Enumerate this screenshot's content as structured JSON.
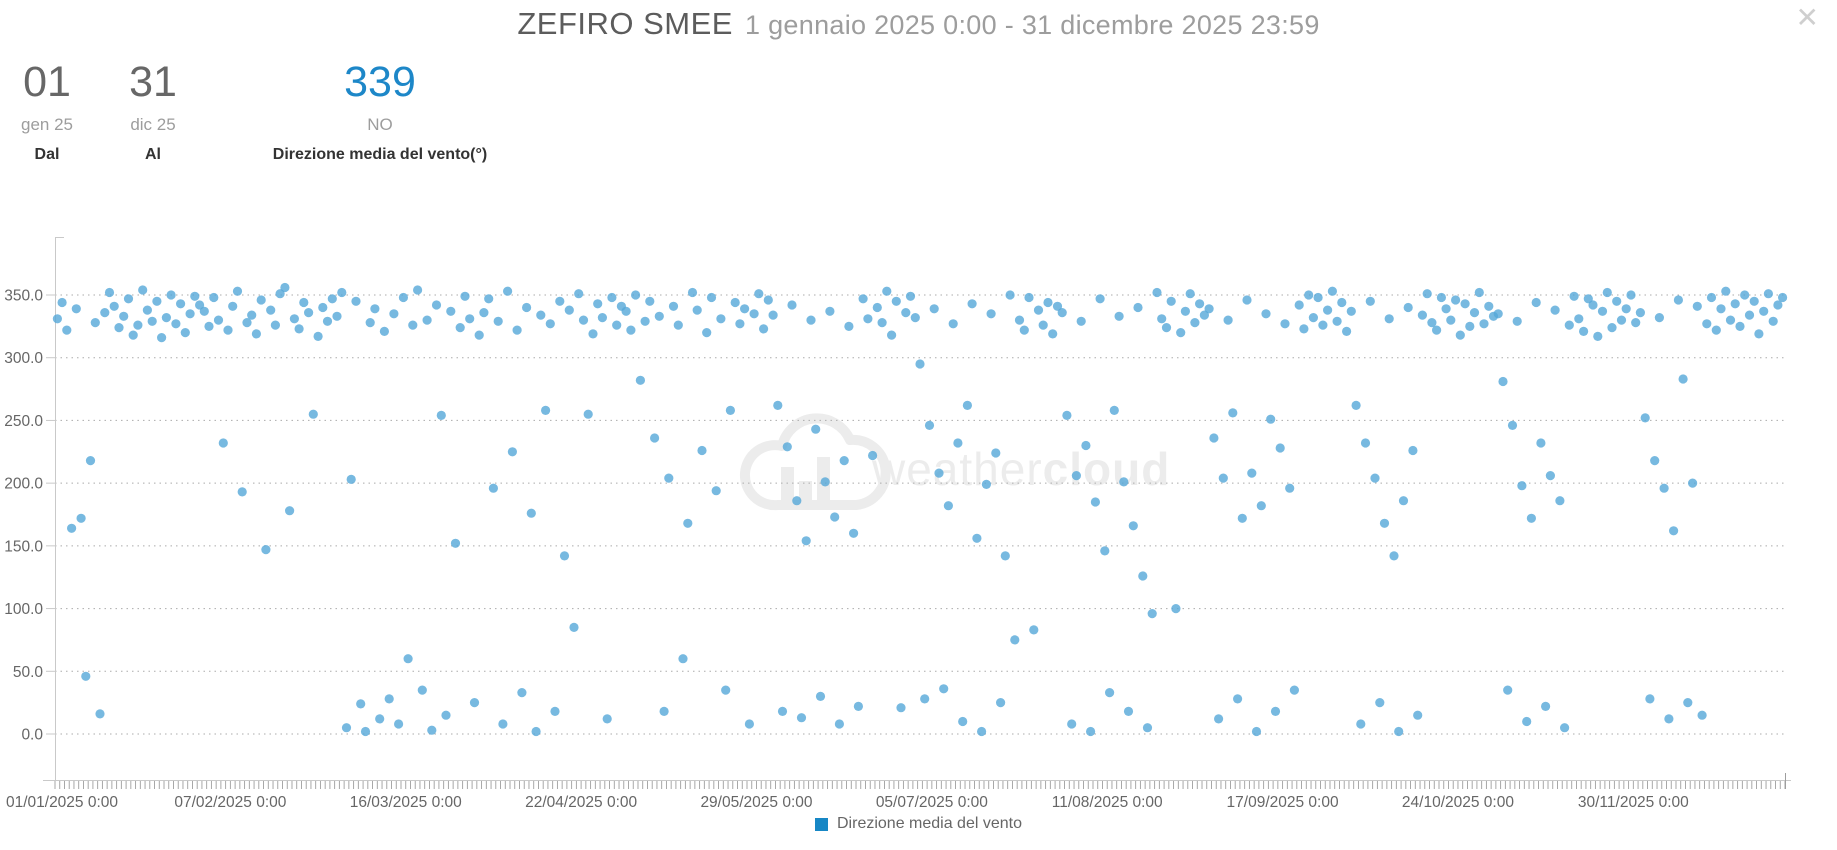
{
  "header": {
    "title": "ZEFIRO SMEE",
    "subtitle": "1 gennaio 2025 0:00 - 31 dicembre 2025 23:59"
  },
  "icons": {
    "close": "✕"
  },
  "stats": [
    {
      "value": "01",
      "unit": "gen 25",
      "label": "Dal"
    },
    {
      "value": "31",
      "unit": "dic 25",
      "label": "Al"
    },
    {
      "value": "339",
      "unit": "NO",
      "label": "Direzione media del vento(°)",
      "color": "#1d87c8"
    }
  ],
  "watermark": {
    "text_regular": "weather",
    "text_bold": "cloud"
  },
  "chart_data": {
    "type": "scatter",
    "title": "",
    "xlabel": "",
    "ylabel": "",
    "ylim": [
      0,
      396
    ],
    "yticks": [
      0,
      50,
      100,
      150,
      200,
      250,
      300,
      350
    ],
    "ytick_labels": [
      "0.0",
      "50.0",
      "100.0",
      "150.0",
      "200.0",
      "250.0",
      "300.0",
      "350.0"
    ],
    "xtick_labels": [
      "01/01/2025 0:00",
      "07/02/2025 0:00",
      "16/03/2025 0:00",
      "22/04/2025 0:00",
      "29/05/2025 0:00",
      "05/07/2025 0:00",
      "11/08/2025 0:00",
      "17/09/2025 0:00",
      "24/10/2025 0:00",
      "30/11/2025 0:00"
    ],
    "xtick_days": [
      0,
      37,
      74,
      111,
      148,
      185,
      222,
      259,
      296,
      333
    ],
    "x_total_days": 365,
    "grid": "dotted-horizontal",
    "legend_position": "bottom-center",
    "series": [
      {
        "name": "Direzione media del vento",
        "point_color": "#55a8d8",
        "legend_color": "#1787c5",
        "values_by_day": [
          331,
          344,
          322,
          164,
          339,
          172,
          46,
          218,
          328,
          16,
          336,
          352,
          341,
          324,
          333,
          347,
          318,
          326,
          354,
          338,
          329,
          345,
          316,
          332,
          350,
          327,
          343,
          320,
          335,
          349,
          342,
          337,
          325,
          348,
          330,
          232,
          322,
          341,
          353,
          193,
          328,
          334,
          319,
          346,
          147,
          338,
          326,
          351,
          356,
          178,
          331,
          323,
          344,
          336,
          255,
          317,
          340,
          329,
          347,
          333,
          352,
          5,
          203,
          345,
          24,
          2,
          328,
          339,
          12,
          321,
          28,
          335,
          8,
          348,
          60,
          326,
          354,
          35,
          330,
          3,
          342,
          254,
          15,
          337,
          152,
          324,
          349,
          331,
          25,
          318,
          336,
          347,
          196,
          329,
          8,
          353,
          225,
          322,
          33,
          340,
          176,
          2,
          334,
          258,
          327,
          18,
          345,
          142,
          338,
          85,
          351,
          330,
          255,
          319,
          343,
          332,
          12,
          348,
          326,
          341,
          337,
          322,
          350,
          282,
          329,
          345,
          236,
          333,
          18,
          204,
          341,
          326,
          60,
          168,
          352,
          338,
          226,
          320,
          348,
          194,
          331,
          35,
          258,
          344,
          327,
          339,
          8,
          335,
          351,
          323,
          346,
          334,
          262,
          18,
          229,
          342,
          186,
          13,
          154,
          330,
          243,
          30,
          201,
          337,
          173,
          8,
          218,
          325,
          160,
          22,
          347,
          331,
          222,
          340,
          328,
          353,
          318,
          345,
          21,
          336,
          349,
          332,
          295,
          28,
          246,
          339,
          208,
          36,
          182,
          327,
          232,
          10,
          262,
          343,
          156,
          2,
          199,
          335,
          224,
          25,
          142,
          350,
          75,
          330,
          322,
          348,
          83,
          338,
          326,
          344,
          319,
          341,
          336,
          254,
          8,
          206,
          329,
          230,
          2,
          185,
          347,
          146,
          33,
          258,
          333,
          201,
          18,
          166,
          340,
          126,
          5,
          96,
          352,
          331,
          324,
          345,
          100,
          320,
          337,
          351,
          328,
          343,
          334,
          339,
          236,
          12,
          204,
          330,
          256,
          28,
          172,
          346,
          208,
          2,
          182,
          335,
          251,
          18,
          228,
          327,
          196,
          35,
          342,
          323,
          350,
          332,
          348,
          326,
          338,
          353,
          329,
          344,
          321,
          337,
          262,
          8,
          232,
          345,
          204,
          25,
          168,
          331,
          142,
          2,
          186,
          340,
          226,
          15,
          334,
          351,
          328,
          322,
          348,
          339,
          330,
          346,
          318,
          343,
          325,
          336,
          352,
          327,
          341,
          333,
          335,
          281,
          35,
          246,
          329,
          198,
          10,
          172,
          344,
          232,
          22,
          206,
          338,
          186,
          5,
          326,
          349,
          331,
          321,
          347,
          342,
          317,
          337,
          352,
          324,
          345,
          330,
          339,
          350,
          328,
          336,
          252,
          28,
          218,
          332,
          196,
          12,
          162,
          346,
          283,
          25,
          200,
          341,
          15,
          327,
          348,
          322,
          339,
          353,
          330,
          343,
          325,
          350,
          334,
          345,
          319,
          337,
          351,
          329,
          342,
          348
        ]
      }
    ]
  }
}
